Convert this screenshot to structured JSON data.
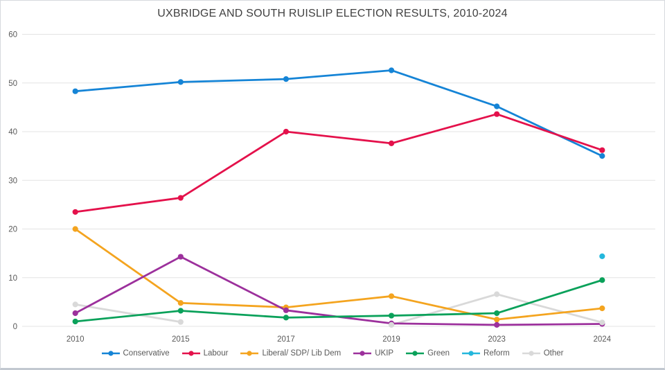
{
  "window": {
    "background_color": "#ffffff",
    "frame_border_color": "#c2c8d0"
  },
  "chart_data": {
    "type": "line",
    "title": "UXBRIDGE AND SOUTH RUISLIP ELECTION RESULTS, 2010-2024",
    "categories": [
      "2010",
      "2015",
      "2017",
      "2019",
      "2023",
      "2024"
    ],
    "xlabel": "",
    "ylabel": "",
    "y_axis": {
      "min": 0,
      "max": 60,
      "tick_step": 10,
      "tick_labels": [
        "0",
        "10",
        "20",
        "30",
        "40",
        "50",
        "60"
      ]
    },
    "grid": true,
    "gridline_color": "#e3e3e3",
    "tick_label_color": "#595959",
    "legend_position": "bottom",
    "marker_style": "circle",
    "series": [
      {
        "name": "Conservative",
        "color": "#1584d6",
        "values": [
          48.3,
          50.2,
          50.8,
          52.6,
          45.2,
          35.0
        ]
      },
      {
        "name": "Labour",
        "color": "#e4114b",
        "values": [
          23.5,
          26.4,
          40.0,
          37.6,
          43.6,
          36.2
        ]
      },
      {
        "name": "Liberal/ SDP/ Lib Dem",
        "color": "#f4a41f",
        "values": [
          20.0,
          4.8,
          3.9,
          6.2,
          1.4,
          3.7
        ]
      },
      {
        "name": "UKIP",
        "color": "#9c309c",
        "values": [
          2.7,
          14.3,
          3.3,
          0.6,
          0.3,
          0.5
        ]
      },
      {
        "name": "Green",
        "color": "#0aa15a",
        "values": [
          1.0,
          3.2,
          1.8,
          2.2,
          2.7,
          9.5
        ]
      },
      {
        "name": "Reform",
        "color": "#24b7dc",
        "values": [
          null,
          null,
          null,
          null,
          null,
          14.4
        ]
      },
      {
        "name": "Other",
        "color": "#d9d9d9",
        "values": [
          4.5,
          0.9,
          null,
          0.3,
          6.6,
          0.8
        ]
      }
    ]
  }
}
